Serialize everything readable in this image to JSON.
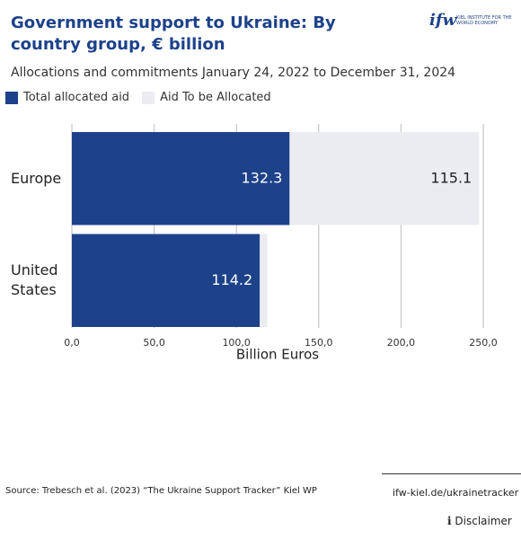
{
  "chart_data": {
    "type": "bar",
    "orientation": "horizontal",
    "stacked": true,
    "title": "Government support to Ukraine: By country group, € billion",
    "subtitle": "Allocations and commitments January 24, 2022 to December 31, 2024",
    "categories": [
      "Europe",
      "United States"
    ],
    "series": [
      {
        "name": "Total allocated aid",
        "color": "#1d428a",
        "values": [
          132.3,
          114.2
        ]
      },
      {
        "name": "Aid To be Allocated",
        "color": "#ebecf2",
        "values": [
          115.1,
          4.6
        ]
      }
    ],
    "xlim": [
      0,
      250
    ],
    "xticks": [
      {
        "value": 0,
        "label": "0,0"
      },
      {
        "value": 50,
        "label": "50,0"
      },
      {
        "value": 100,
        "label": "100,0"
      },
      {
        "value": 150,
        "label": "150,0"
      },
      {
        "value": 200,
        "label": "200,0"
      },
      {
        "value": 250,
        "label": "250,0"
      }
    ],
    "xlabel": "Billion Euros",
    "grid": true,
    "legend": "top-left"
  },
  "logo": {
    "mark": "ifw",
    "text": "KIEL INSTITUTE FOR THE WORLD ECONOMY"
  },
  "footer": {
    "source": "Source: Trebesch et al. (2023) “The Ukraine Support Tracker” Kiel WP",
    "link": "ifw-kiel.de/ukrainetracker",
    "disclaimer": "Disclaimer"
  }
}
